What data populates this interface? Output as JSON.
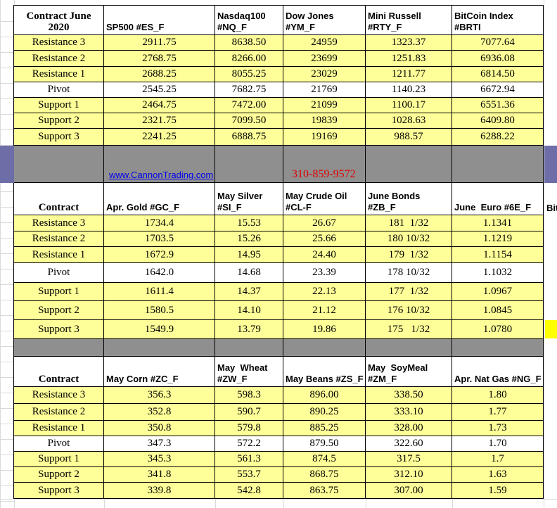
{
  "sections": [
    {
      "header": [
        "Contract June\n2020",
        "SP500 #ES_F",
        "Nasdaq100\n#NQ_F",
        "Dow Jones\n#YM_F",
        "Mini Russell\n#RTY_F",
        "BitCoin Index\n#BRTI"
      ],
      "rows": [
        [
          "Resistance 3",
          "2911.75",
          "8638.50",
          "24959",
          "1323.37",
          "7077.64"
        ],
        [
          "Resistance 2",
          "2768.75",
          "8266.00",
          "23699",
          "1251.83",
          "6936.08"
        ],
        [
          "Resistance 1",
          "2688.25",
          "8055.25",
          "23029",
          "1211.77",
          "6814.50"
        ],
        [
          "Pivot",
          "2545.25",
          "7682.75",
          "21769",
          "1140.23",
          "6672.94"
        ],
        [
          "Support 1",
          "2464.75",
          "7472.00",
          "21099",
          "1100.17",
          "6551.36"
        ],
        [
          "Support 2",
          "2321.75",
          "7099.50",
          "19839",
          "1028.63",
          "6409.80"
        ],
        [
          "Support 3",
          "2241.25",
          "6888.75",
          "19169",
          "988.57",
          "6288.22"
        ]
      ]
    },
    {
      "header": [
        "Contract",
        "Apr. Gold #GC_F",
        "May Silver\n#SI_F",
        "May Crude Oil\n#CL-F",
        "June Bonds\n#ZB_F",
        "June  Euro #6E_F"
      ],
      "rows": [
        [
          "Resistance 3",
          "1734.4",
          "15.53",
          "26.67",
          "181  1/32",
          "1.1341"
        ],
        [
          "Resistance 2",
          "1703.5",
          "15.26",
          "25.66",
          "180 10/32",
          "1.1219"
        ],
        [
          "Resistance 1",
          "1672.9",
          "14.95",
          "24.40",
          "179  1/32",
          "1.1154"
        ],
        [
          "Pivot",
          "1642.0",
          "14.68",
          "23.39",
          "178 10/32",
          "1.1032"
        ],
        [
          "Support 1",
          "1611.4",
          "14.37",
          "22.13",
          "177  1/32",
          "1.0967"
        ],
        [
          "Support 2",
          "1580.5",
          "14.10",
          "21.12",
          "176 10/32",
          "1.0845"
        ],
        [
          "Support 3",
          "1549.9",
          "13.79",
          "19.86",
          "175   1/32",
          "1.0780"
        ]
      ]
    },
    {
      "header": [
        "Contract",
        "May Corn #ZC_F",
        "May  Wheat\n#ZW_F",
        "May Beans #ZS_F",
        "May  SoyMeal\n#ZM_F",
        "Apr. Nat Gas #NG_F"
      ],
      "rows": [
        [
          "Resistance 3",
          "356.3",
          "598.3",
          "896.00",
          "338.50",
          "1.80"
        ],
        [
          "Resistance 2",
          "352.8",
          "590.7",
          "890.25",
          "333.10",
          "1.77"
        ],
        [
          "Resistance 1",
          "350.8",
          "579.8",
          "885.25",
          "328.00",
          "1.73"
        ],
        [
          "Pivot",
          "347.3",
          "572.2",
          "879.50",
          "322.60",
          "1.70"
        ],
        [
          "Support 1",
          "345.3",
          "561.3",
          "874.5",
          "317.5",
          "1.7"
        ],
        [
          "Support 2",
          "341.8",
          "553.7",
          "868.75",
          "312.10",
          "1.63"
        ],
        [
          "Support 3",
          "339.8",
          "542.8",
          "863.75",
          "307.00",
          "1.59"
        ]
      ]
    }
  ],
  "band": {
    "website": "www.CannonTrading.com",
    "phone": "310-859-9572"
  },
  "overflow_header": "Bit"
}
